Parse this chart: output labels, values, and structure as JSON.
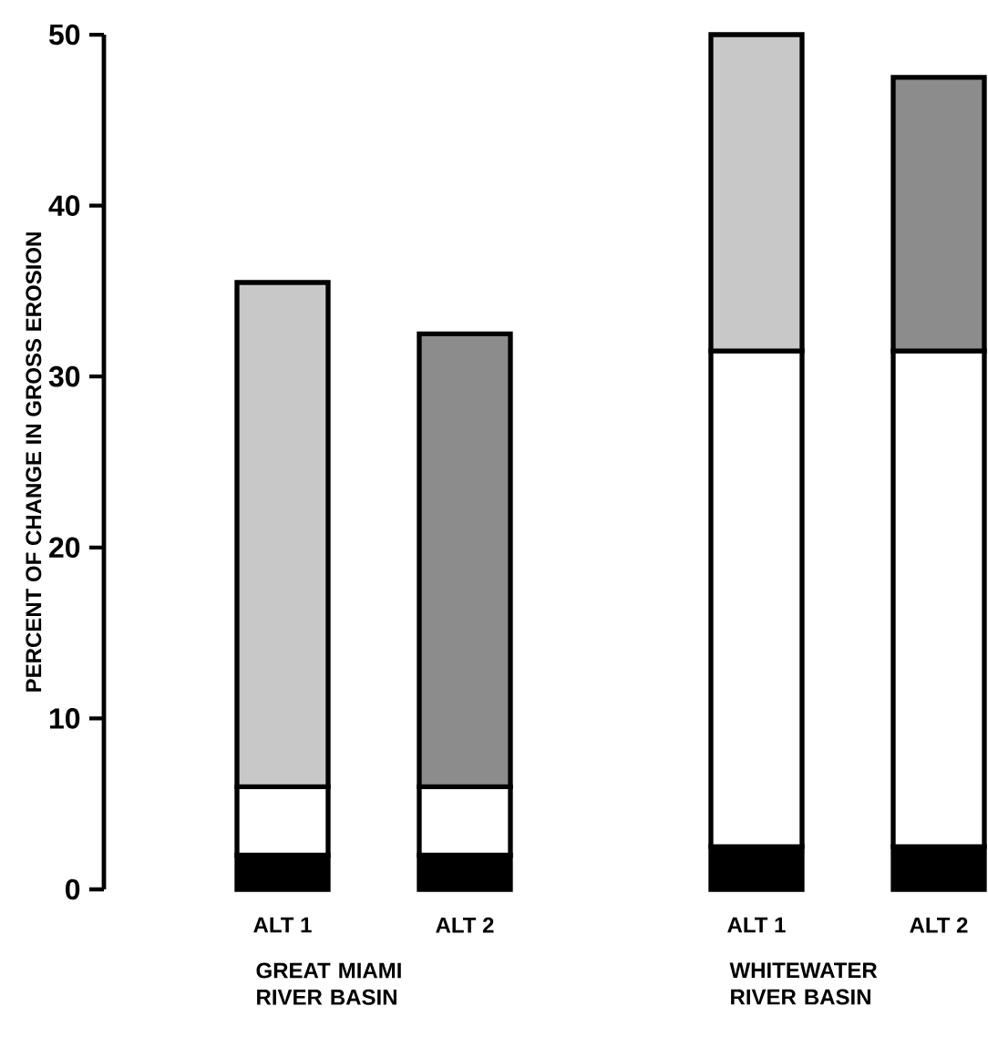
{
  "chart_data": {
    "type": "bar",
    "stacked": true,
    "ylabel": "PERCENT OF CHANGE IN GROSS EROSION",
    "categories": [
      "ALT 1",
      "ALT 2",
      "ALT 1",
      "ALT 2"
    ],
    "series": [
      {
        "color": "#000000",
        "values": [
          2,
          2,
          2.5,
          2.5
        ]
      },
      {
        "color": "#ffffff",
        "values": [
          4,
          4,
          29,
          29
        ]
      },
      {
        "color": "#c8c8c8",
        "values": [
          29.5,
          null,
          18.5,
          null
        ]
      },
      {
        "color": "#8c8c8c",
        "values": [
          null,
          26.5,
          null,
          16
        ]
      }
    ],
    "ylim": [
      0,
      50
    ],
    "yticks": [
      0,
      10,
      20,
      30,
      40,
      50
    ],
    "annotations": [
      "GREAT MIAMI RIVER BASIN",
      "WHITEWATER RIVER BASIN"
    ]
  }
}
